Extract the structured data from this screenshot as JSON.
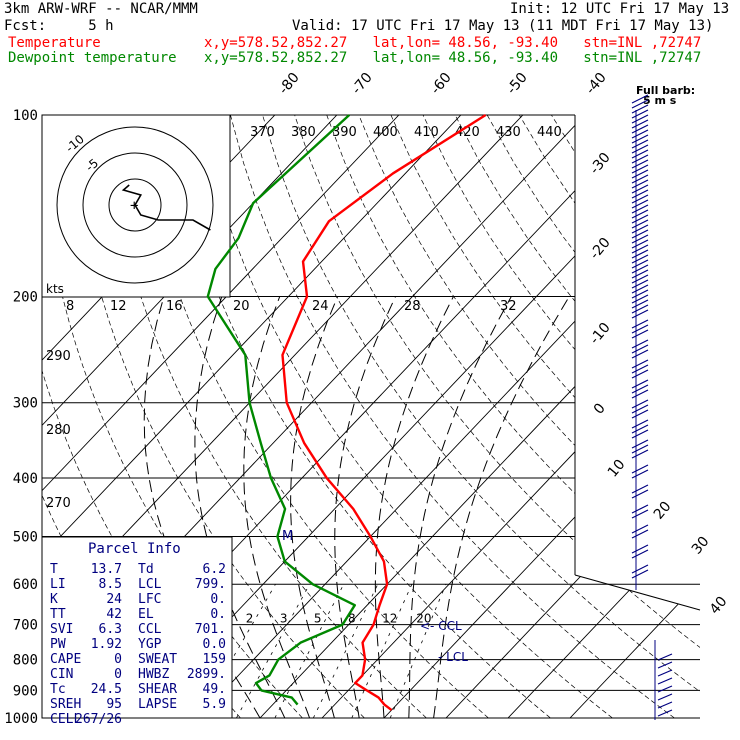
{
  "header": {
    "title": "3km ARW-WRF -- NCAR/MMM",
    "init": "Init: 12 UTC Fri 17 May 13",
    "fcst": "Fcst:     5 h",
    "valid": "Valid: 17 UTC Fri 17 May 13 (11 MDT Fri 17 May 13)",
    "temp_label": "Temperature",
    "dew_label": "Dewpoint temperature",
    "temp_info": "x,y=578.52,852.27   lat,lon= 48.56, -93.40   stn=INL ,72747",
    "dew_info": "x,y=578.52,852.27   lat,lon= 48.56, -93.40   stn=INL ,72747"
  },
  "colors": {
    "temperature": "#ff0000",
    "dewpoint": "#008800",
    "parcel_text": "#000080",
    "wind": "#000080"
  },
  "chart_data": {
    "type": "line",
    "skew_t": true,
    "pressure_ticks": [
      "100",
      "200",
      "300",
      "400",
      "500",
      "600",
      "700",
      "800",
      "900",
      "1000"
    ],
    "isotherm_labels": [
      "-80",
      "-70",
      "-60",
      "-50",
      "-40",
      "-30",
      "-20",
      "-10",
      "0",
      "10",
      "20",
      "30",
      "40"
    ],
    "theta_labels_top": [
      "370",
      "380",
      "390",
      "400",
      "410",
      "420",
      "430",
      "440"
    ],
    "theta_labels_left": [
      "290",
      "280",
      "270"
    ],
    "mixing_ratio_labels": [
      "2",
      "3",
      "5",
      "8",
      "12",
      "20"
    ],
    "hodo_labels": [
      "kts",
      "8",
      "12",
      "16",
      "20",
      "24",
      "28",
      "32"
    ],
    "hodo_ring_labels": [
      "-10",
      "-5"
    ],
    "lcl_label": "LCL",
    "ccl_label": "CCL",
    "wind_label": "Full barb:",
    "wind_unit": "5 m s",
    "series": [
      {
        "name": "Temperature",
        "color": "#ff0000",
        "points": [
          [
            -56,
            100
          ],
          [
            -62,
            125
          ],
          [
            -65,
            150
          ],
          [
            -63,
            175
          ],
          [
            -57,
            200
          ],
          [
            -52,
            250
          ],
          [
            -44,
            300
          ],
          [
            -35,
            350
          ],
          [
            -26,
            400
          ],
          [
            -17,
            450
          ],
          [
            -10,
            500
          ],
          [
            -4,
            550
          ],
          [
            0,
            600
          ],
          [
            2,
            650
          ],
          [
            4,
            700
          ],
          [
            5,
            750
          ],
          [
            8,
            800
          ],
          [
            10,
            850
          ],
          [
            10,
            875
          ],
          [
            13,
            900
          ],
          [
            16,
            925
          ],
          [
            18,
            950
          ],
          [
            20,
            970
          ]
        ]
      },
      {
        "name": "Dewpoint temperature",
        "color": "#008800",
        "points": [
          [
            -78,
            100
          ],
          [
            -80,
            140
          ],
          [
            -77,
            160
          ],
          [
            -76,
            180
          ],
          [
            -73,
            200
          ],
          [
            -58,
            250
          ],
          [
            -50,
            300
          ],
          [
            -42,
            350
          ],
          [
            -35,
            400
          ],
          [
            -28,
            450
          ],
          [
            -25,
            500
          ],
          [
            -20,
            550
          ],
          [
            -12,
            600
          ],
          [
            -2,
            650
          ],
          [
            -1,
            700
          ],
          [
            -5,
            750
          ],
          [
            -6,
            800
          ],
          [
            -5,
            850
          ],
          [
            -6,
            875
          ],
          [
            -4,
            900
          ],
          [
            2,
            925
          ],
          [
            4,
            950
          ]
        ]
      }
    ],
    "hodograph_path": [
      [
        -1,
        -4
      ],
      [
        -2,
        -3
      ],
      [
        1,
        -2
      ],
      [
        0,
        0
      ],
      [
        1,
        2
      ],
      [
        4,
        3
      ],
      [
        10,
        3
      ],
      [
        13,
        5
      ]
    ],
    "wind_profile": [
      {
        "p": 100,
        "spd": 28
      },
      {
        "p": 150,
        "spd": 30
      },
      {
        "p": 200,
        "spd": 27
      },
      {
        "p": 250,
        "spd": 25
      },
      {
        "p": 300,
        "spd": 22
      },
      {
        "p": 350,
        "spd": 20
      },
      {
        "p": 400,
        "spd": 17
      },
      {
        "p": 450,
        "spd": 15
      },
      {
        "p": 500,
        "spd": 12
      }
    ]
  },
  "parcel_info": {
    "title": "Parcel Info",
    "rows": [
      {
        "l1": "T",
        "v1": "13.7",
        "l2": "Td",
        "v2": "6.2"
      },
      {
        "l1": "LI",
        "v1": "8.5",
        "l2": "LCL",
        "v2": "799."
      },
      {
        "l1": "K",
        "v1": "24",
        "l2": "LFC",
        "v2": "0."
      },
      {
        "l1": "TT",
        "v1": "42",
        "l2": "EL",
        "v2": "0."
      },
      {
        "l1": "SVI",
        "v1": "6.3",
        "l2": "CCL",
        "v2": "701."
      },
      {
        "l1": "PW",
        "v1": "1.92",
        "l2": "YGP",
        "v2": "0.0"
      },
      {
        "l1": "CAPE",
        "v1": "0",
        "l2": "SWEAT",
        "v2": "159"
      },
      {
        "l1": "CIN",
        "v1": "0",
        "l2": "HWBZ",
        "v2": "2899."
      },
      {
        "l1": "Tc",
        "v1": "24.5",
        "l2": "SHEAR",
        "v2": "49."
      },
      {
        "l1": "SREH",
        "v1": "95",
        "l2": "LAPSE",
        "v2": "5.9"
      },
      {
        "l1": "CELL",
        "v1": "267/26",
        "l2": "",
        "v2": ""
      }
    ]
  }
}
